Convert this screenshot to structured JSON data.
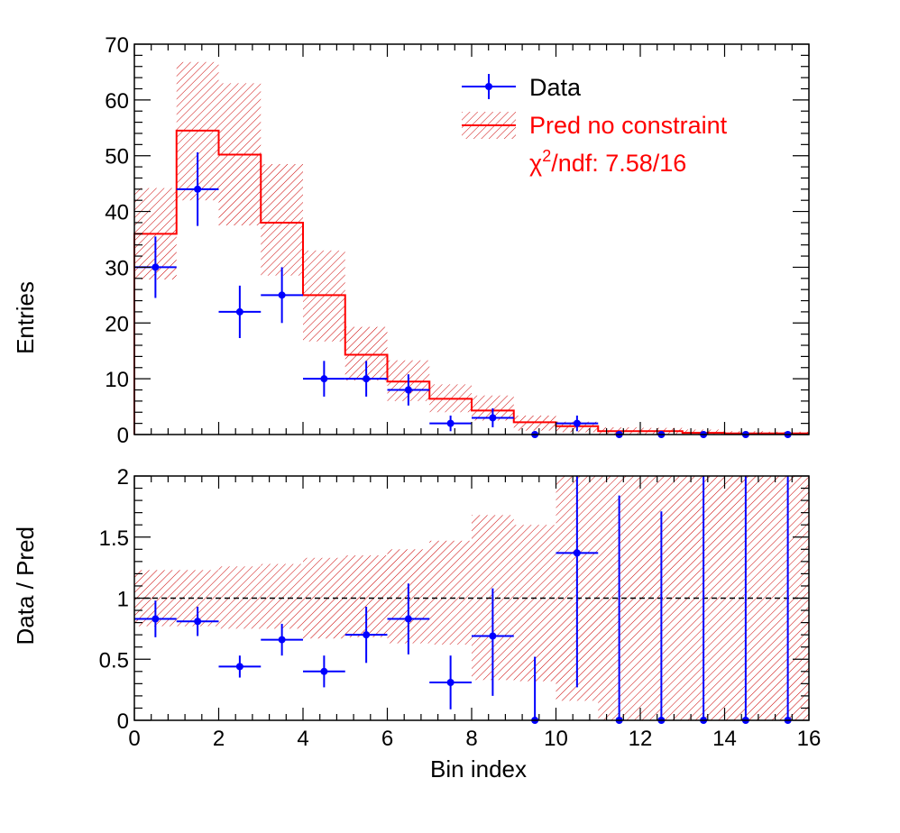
{
  "chart_data": [
    {
      "type": "histogram",
      "panel": "top",
      "ylabel": "Entries",
      "xlim": [
        0,
        16
      ],
      "ylim": [
        0,
        70
      ],
      "x_ticks": [
        0,
        2,
        4,
        6,
        8,
        10,
        12,
        14,
        16
      ],
      "y_ticks": [
        0,
        10,
        20,
        30,
        40,
        50,
        60,
        70
      ],
      "y_tick_labels": [
        "0",
        "10",
        "20",
        "30",
        "40",
        "50",
        "60",
        "70"
      ],
      "bin_edges": [
        0,
        1,
        2,
        3,
        4,
        5,
        6,
        7,
        8,
        9,
        10,
        11,
        12,
        13,
        14,
        15,
        16
      ],
      "series": [
        {
          "name": "Data",
          "kind": "points",
          "color": "#0000ff",
          "values": [
            30,
            44,
            22,
            25,
            10,
            10,
            8,
            2,
            3,
            0,
            2,
            0,
            0,
            0,
            0,
            0
          ],
          "err_low": [
            5.5,
            6.6,
            4.7,
            5.0,
            3.2,
            3.2,
            2.8,
            1.4,
            1.7,
            0,
            1.4,
            0,
            0,
            0,
            0,
            0
          ],
          "err_high": [
            5.5,
            6.6,
            4.7,
            5.0,
            3.2,
            3.2,
            2.8,
            1.4,
            1.7,
            0,
            1.4,
            0,
            0,
            0,
            0,
            0
          ]
        },
        {
          "name": "Pred no constraint",
          "kind": "step",
          "color": "#ff0000",
          "values": [
            36,
            54.5,
            50.2,
            38,
            25,
            14.3,
            9.5,
            6.4,
            4.3,
            2.2,
            1.5,
            0.6,
            0.6,
            0.3,
            0.2,
            0.2
          ],
          "band_low": [
            27.8,
            42,
            37.5,
            28.5,
            16.7,
            9.7,
            6.0,
            4.0,
            2.5,
            0.7,
            0.4,
            0.05,
            0.05,
            0,
            0,
            0
          ],
          "band_high": [
            44.2,
            66.8,
            63,
            48.5,
            33,
            19.3,
            13.3,
            9.0,
            7.0,
            3.4,
            2.3,
            1.3,
            1.2,
            0.9,
            0.6,
            0.5
          ]
        }
      ],
      "legend": {
        "placement": "top-right",
        "entries": [
          "Data",
          "Pred no constraint"
        ],
        "annotation": "χ2/ndf: 7.58/16",
        "annotation_base": "χ",
        "annotation_sup": "2",
        "annotation_rest": "/ndf: 7.58/16"
      }
    },
    {
      "type": "ratio",
      "panel": "bottom",
      "xlabel": "Bin index",
      "ylabel": "Data / Pred",
      "xlim": [
        0,
        16
      ],
      "ylim": [
        0,
        2
      ],
      "x_ticks": [
        0,
        2,
        4,
        6,
        8,
        10,
        12,
        14,
        16
      ],
      "x_tick_labels": [
        "0",
        "2",
        "4",
        "6",
        "8",
        "10",
        "12",
        "14",
        "16"
      ],
      "y_ticks": [
        0,
        0.5,
        1,
        1.5,
        2
      ],
      "y_tick_labels": [
        "0",
        "0.5",
        "1",
        "1.5",
        "2"
      ],
      "reference_line": 1,
      "ratio": [
        0.83,
        0.81,
        0.44,
        0.66,
        0.4,
        0.7,
        0.83,
        0.31,
        0.69,
        0,
        1.37,
        0,
        0,
        0,
        0,
        0
      ],
      "ratio_err_low": [
        0.15,
        0.12,
        0.09,
        0.13,
        0.13,
        0.23,
        0.29,
        0.22,
        0.49,
        0,
        1.1,
        0,
        0,
        0,
        0,
        0
      ],
      "ratio_err_high": [
        0.15,
        0.12,
        0.09,
        0.13,
        0.13,
        0.23,
        0.29,
        0.22,
        0.39,
        0.52,
        0.9,
        1.84,
        1.71,
        2.0,
        2.0,
        2.0
      ],
      "band_low": [
        0.77,
        0.77,
        0.75,
        0.75,
        0.67,
        0.68,
        0.63,
        0.62,
        0.33,
        0.32,
        0.16,
        0,
        0,
        0,
        0,
        0
      ],
      "band_high": [
        1.23,
        1.23,
        1.26,
        1.28,
        1.33,
        1.35,
        1.4,
        1.47,
        1.68,
        1.6,
        2.0,
        2.0,
        2.0,
        2.0,
        2.0,
        2.0
      ]
    }
  ]
}
